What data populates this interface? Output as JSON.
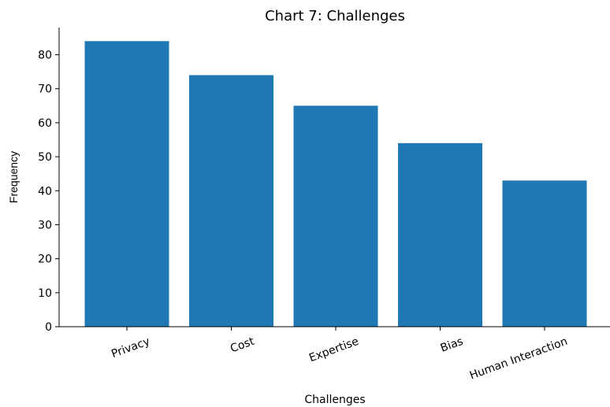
{
  "chart_data": {
    "type": "bar",
    "title": "Chart 7: Challenges",
    "xlabel": "Challenges",
    "ylabel": "Frequency",
    "categories": [
      "Privacy",
      "Cost",
      "Expertise",
      "Bias",
      "Human Interaction"
    ],
    "values": [
      84,
      74,
      65,
      54,
      43
    ],
    "ylim": [
      0,
      88
    ],
    "yticks": [
      "0",
      "10",
      "20",
      "30",
      "40",
      "50",
      "60",
      "70",
      "80"
    ],
    "grid": false,
    "legend": false,
    "bar_color": "#1f77b4",
    "x_tick_rotation": "20deg"
  }
}
